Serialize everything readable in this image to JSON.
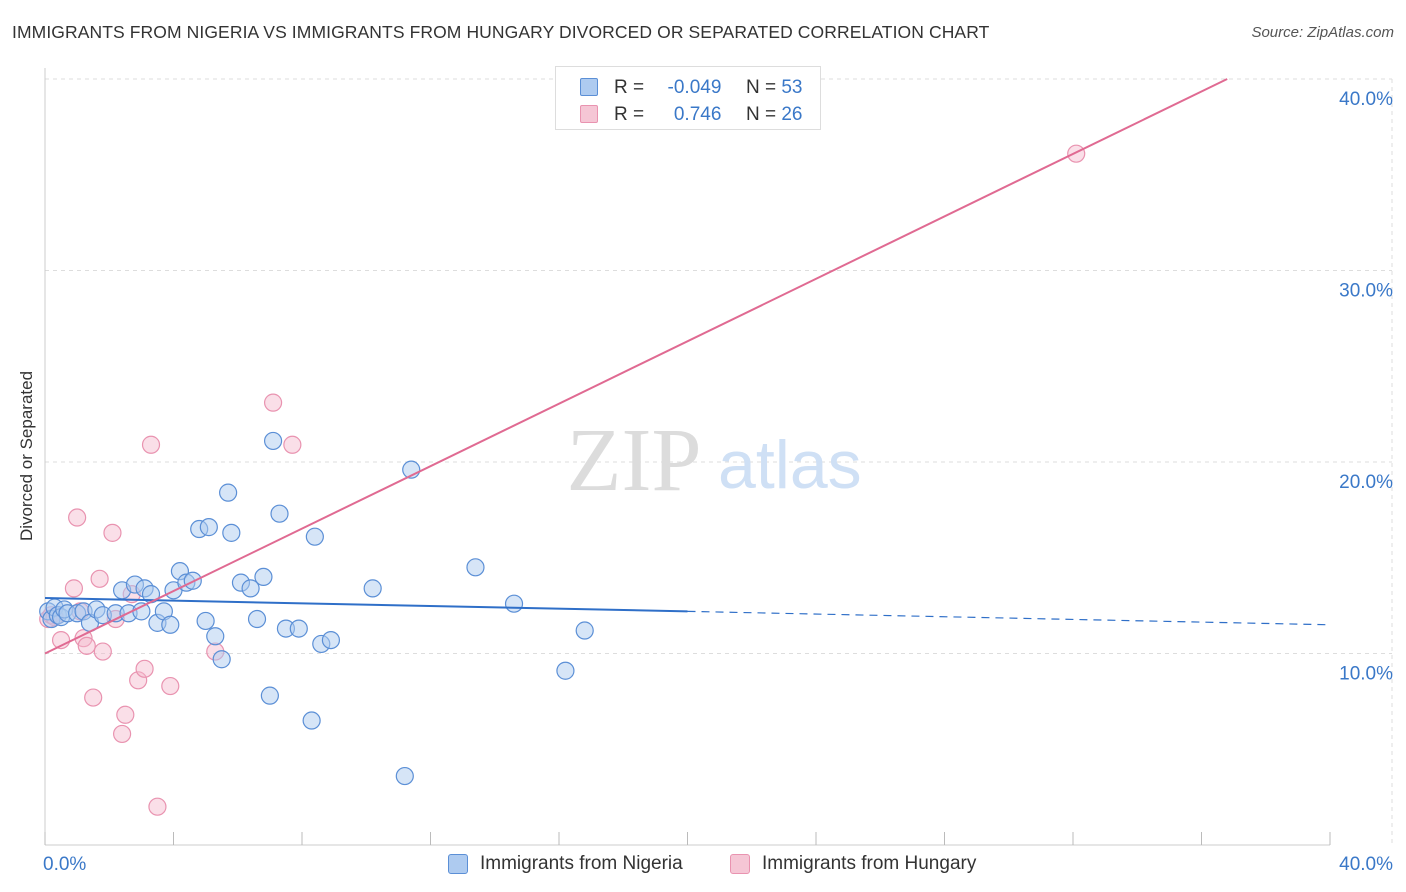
{
  "title": "IMMIGRANTS FROM NIGERIA VS IMMIGRANTS FROM HUNGARY DIVORCED OR SEPARATED CORRELATION CHART",
  "source": "Source: ZipAtlas.com",
  "watermark": {
    "zip": "ZIP",
    "atlas": "atlas"
  },
  "colors": {
    "nigeria": "#5b8fd6",
    "nigeria_fill": "#aecbf0",
    "hungary": "#e06a92",
    "hungary_fill": "#f5b8cb",
    "tick_label": "#3a78c8",
    "grid": "#dddddd"
  },
  "legend": {
    "rows": [
      {
        "r_label": "R =",
        "r_value": "-0.049",
        "n_label": "N =",
        "n_value": "53"
      },
      {
        "r_label": "R =",
        "r_value": "0.746",
        "n_label": "N =",
        "n_value": "26"
      }
    ]
  },
  "chart_data": {
    "type": "scatter",
    "title": "IMMIGRANTS FROM NIGERIA VS IMMIGRANTS FROM HUNGARY DIVORCED OR SEPARATED CORRELATION CHART",
    "xlabel": "",
    "ylabel": "Divorced or Separated",
    "xlim": [
      0,
      40
    ],
    "ylim": [
      0,
      40
    ],
    "x_tick_labels": [
      "0.0%",
      "40.0%"
    ],
    "y_ticks": [
      10,
      20,
      30,
      40
    ],
    "y_tick_labels": [
      "10.0%",
      "20.0%",
      "30.0%",
      "40.0%"
    ],
    "grid": true,
    "series": [
      {
        "name": "Immigrants from Nigeria",
        "r": -0.049,
        "n": 53,
        "trend": {
          "x0": 0,
          "y0": 12.9,
          "x1": 20,
          "y1": 12.2,
          "dashed_to_x": 40,
          "dashed_to_y": 11.5
        },
        "points": [
          [
            0.1,
            12.2
          ],
          [
            0.2,
            11.8
          ],
          [
            0.3,
            12.4
          ],
          [
            0.4,
            12.0
          ],
          [
            0.5,
            11.9
          ],
          [
            0.6,
            12.3
          ],
          [
            0.7,
            12.1
          ],
          [
            1.0,
            12.1
          ],
          [
            1.2,
            12.2
          ],
          [
            1.4,
            11.6
          ],
          [
            1.6,
            12.3
          ],
          [
            1.8,
            12.0
          ],
          [
            2.2,
            12.1
          ],
          [
            2.4,
            13.3
          ],
          [
            2.6,
            12.1
          ],
          [
            2.8,
            13.6
          ],
          [
            3.0,
            12.2
          ],
          [
            3.1,
            13.4
          ],
          [
            3.3,
            13.1
          ],
          [
            3.5,
            11.6
          ],
          [
            3.7,
            12.2
          ],
          [
            3.9,
            11.5
          ],
          [
            4.0,
            13.3
          ],
          [
            4.2,
            14.3
          ],
          [
            4.4,
            13.7
          ],
          [
            4.6,
            13.8
          ],
          [
            4.8,
            16.5
          ],
          [
            5.0,
            11.7
          ],
          [
            5.1,
            16.6
          ],
          [
            5.3,
            10.9
          ],
          [
            5.5,
            9.7
          ],
          [
            5.7,
            18.4
          ],
          [
            5.8,
            16.3
          ],
          [
            6.1,
            13.7
          ],
          [
            6.4,
            13.4
          ],
          [
            6.6,
            11.8
          ],
          [
            6.8,
            14.0
          ],
          [
            7.0,
            7.8
          ],
          [
            7.1,
            21.1
          ],
          [
            7.3,
            17.3
          ],
          [
            7.5,
            11.3
          ],
          [
            7.9,
            11.3
          ],
          [
            8.3,
            6.5
          ],
          [
            8.4,
            16.1
          ],
          [
            8.6,
            10.5
          ],
          [
            8.9,
            10.7
          ],
          [
            10.2,
            13.4
          ],
          [
            11.2,
            3.6
          ],
          [
            11.4,
            19.6
          ],
          [
            13.4,
            14.5
          ],
          [
            14.6,
            12.6
          ],
          [
            16.2,
            9.1
          ],
          [
            16.8,
            11.2
          ]
        ]
      },
      {
        "name": "Immigrants from Hungary",
        "r": 0.746,
        "n": 26,
        "trend": {
          "x0": 0,
          "y0": 10.0,
          "x1": 36.8,
          "y1": 40.0
        },
        "points": [
          [
            0.1,
            11.8
          ],
          [
            0.2,
            12.0
          ],
          [
            0.3,
            11.9
          ],
          [
            0.5,
            10.7
          ],
          [
            0.9,
            13.4
          ],
          [
            1.0,
            17.1
          ],
          [
            1.2,
            10.8
          ],
          [
            1.3,
            10.4
          ],
          [
            1.5,
            7.7
          ],
          [
            1.7,
            13.9
          ],
          [
            1.8,
            10.1
          ],
          [
            2.1,
            16.3
          ],
          [
            2.2,
            11.8
          ],
          [
            2.4,
            5.8
          ],
          [
            2.5,
            6.8
          ],
          [
            2.7,
            13.1
          ],
          [
            2.9,
            8.6
          ],
          [
            3.1,
            9.2
          ],
          [
            3.3,
            20.9
          ],
          [
            3.5,
            2.0
          ],
          [
            3.9,
            8.3
          ],
          [
            5.3,
            10.1
          ],
          [
            7.1,
            23.1
          ],
          [
            7.7,
            20.9
          ],
          [
            32.1,
            36.1
          ],
          [
            1.1,
            12.2
          ]
        ]
      }
    ]
  },
  "bottom_legend": {
    "nigeria": "Immigrants from Nigeria",
    "hungary": "Immigrants from Hungary"
  }
}
